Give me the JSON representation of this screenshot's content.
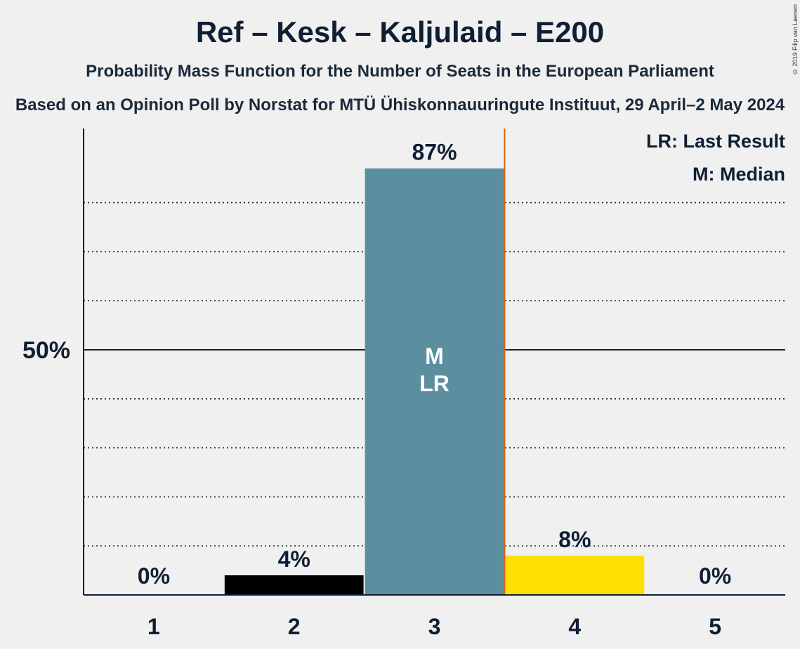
{
  "title": "Ref – Kesk – Kaljulaid – E200",
  "subtitle": "Probability Mass Function for the Number of Seats in the European Parliament",
  "source": "Based on an Opinion Poll by Norstat for MTÜ Ühiskonnauuringute Instituut, 29 April–2 May 2024",
  "copyright": "© 2019 Filip van Laenen",
  "legend": {
    "last_result": "LR: Last Result",
    "median": "M: Median"
  },
  "chart_data": {
    "type": "bar",
    "categories": [
      "1",
      "2",
      "3",
      "4",
      "5"
    ],
    "values": [
      0,
      4,
      87,
      8,
      0
    ],
    "value_labels": [
      "0%",
      "4%",
      "87%",
      "8%",
      "0%"
    ],
    "bar_colors": [
      "#000000",
      "#000000",
      "#5b8f9f",
      "#ffe000",
      "#000000"
    ],
    "median_seats": "3",
    "last_result_seats": "3",
    "median_mark": "M",
    "last_result_mark": "LR",
    "ytick_label": "50%",
    "ytick_value": 50,
    "ylim": [
      0,
      95
    ],
    "minor_gridlines": [
      10,
      20,
      30,
      40,
      60,
      70,
      80
    ],
    "threshold_line_color": "#e06010",
    "xlabel": "",
    "ylabel": ""
  }
}
